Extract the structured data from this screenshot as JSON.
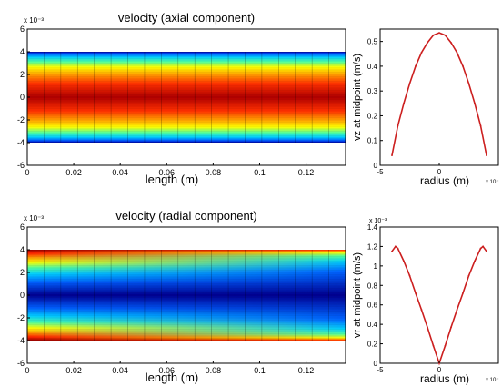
{
  "chart_data": [
    {
      "type": "heatmap",
      "title": "velocity (axial component)",
      "xlabel": "length (m)",
      "ylabel": "",
      "y_multiplier": "x 10⁻³",
      "x_ticks": [
        "0",
        "0.02",
        "0.04",
        "0.06",
        "0.08",
        "0.1",
        "0.12"
      ],
      "y_ticks": [
        "6",
        "4",
        "2",
        "0",
        "-2",
        "-4",
        "-6"
      ],
      "xlim": [
        0,
        0.137
      ],
      "ylim": [
        -0.006,
        0.006
      ],
      "domain_r": [
        -0.004,
        0.004
      ],
      "colormap": "jet",
      "field": "parabolic profile: max at r=0, min at walls, uniform along length"
    },
    {
      "type": "line",
      "title": "",
      "xlabel": "radius (m)",
      "ylabel": "vz at midpoint (m/s)",
      "x_ticks": [
        "-5",
        "0"
      ],
      "x_multiplier": "x 10⁻",
      "y_ticks": [
        "0",
        "0.1",
        "0.2",
        "0.3",
        "0.4",
        "0.5"
      ],
      "xlim": [
        -0.005,
        0.005
      ],
      "ylim": [
        0,
        0.55
      ],
      "line_color": "#cc1f1f",
      "series": [
        {
          "x": [
            -0.004,
            -0.0035,
            -0.003,
            -0.0025,
            -0.002,
            -0.0015,
            -0.001,
            -0.0005,
            0,
            0.0005,
            0.001,
            0.0015,
            0.002,
            0.0025,
            0.003,
            0.0035,
            0.004
          ],
          "y": [
            0.04,
            0.16,
            0.25,
            0.33,
            0.4,
            0.455,
            0.495,
            0.525,
            0.535,
            0.525,
            0.495,
            0.455,
            0.4,
            0.33,
            0.25,
            0.16,
            0.04
          ]
        }
      ]
    },
    {
      "type": "heatmap",
      "title": "velocity (radial component)",
      "xlabel": "length (m)",
      "ylabel": "",
      "y_multiplier": "x 10⁻³",
      "x_ticks": [
        "0",
        "0.02",
        "0.04",
        "0.06",
        "0.08",
        "0.1",
        "0.12"
      ],
      "y_ticks": [
        "6",
        "4",
        "2",
        "0",
        "-2",
        "-4",
        "-6"
      ],
      "xlim": [
        0,
        0.137
      ],
      "ylim": [
        -0.006,
        0.006
      ],
      "domain_r": [
        -0.004,
        0.004
      ],
      "colormap": "jet",
      "field": "|r|-proportional: low at centre, high near walls; high band narrows with length"
    },
    {
      "type": "line",
      "title": "",
      "xlabel": "radius (m)",
      "ylabel": "vr at midpoint (m/s)",
      "y_multiplier": "x 10⁻³",
      "x_ticks": [
        "-5",
        "0"
      ],
      "x_multiplier": "x 10⁻",
      "y_ticks": [
        "0",
        "0.2",
        "0.4",
        "0.6",
        "0.8",
        "1",
        "1.2",
        "1.4"
      ],
      "xlim": [
        -0.005,
        0.005
      ],
      "ylim": [
        0,
        0.0014
      ],
      "line_color": "#cc1f1f",
      "series": [
        {
          "x": [
            -0.004,
            -0.0037,
            -0.0035,
            -0.003,
            -0.0025,
            -0.002,
            -0.0015,
            -0.001,
            -0.0005,
            0,
            0.0005,
            0.001,
            0.0015,
            0.002,
            0.0025,
            0.003,
            0.0035,
            0.0037,
            0.004
          ],
          "y": [
            0.00115,
            0.0012,
            0.00118,
            0.00105,
            0.0009,
            0.00072,
            0.00055,
            0.00037,
            0.00018,
            0.0,
            0.00018,
            0.00037,
            0.00055,
            0.00072,
            0.0009,
            0.00105,
            0.00118,
            0.0012,
            0.00115
          ]
        }
      ]
    }
  ]
}
